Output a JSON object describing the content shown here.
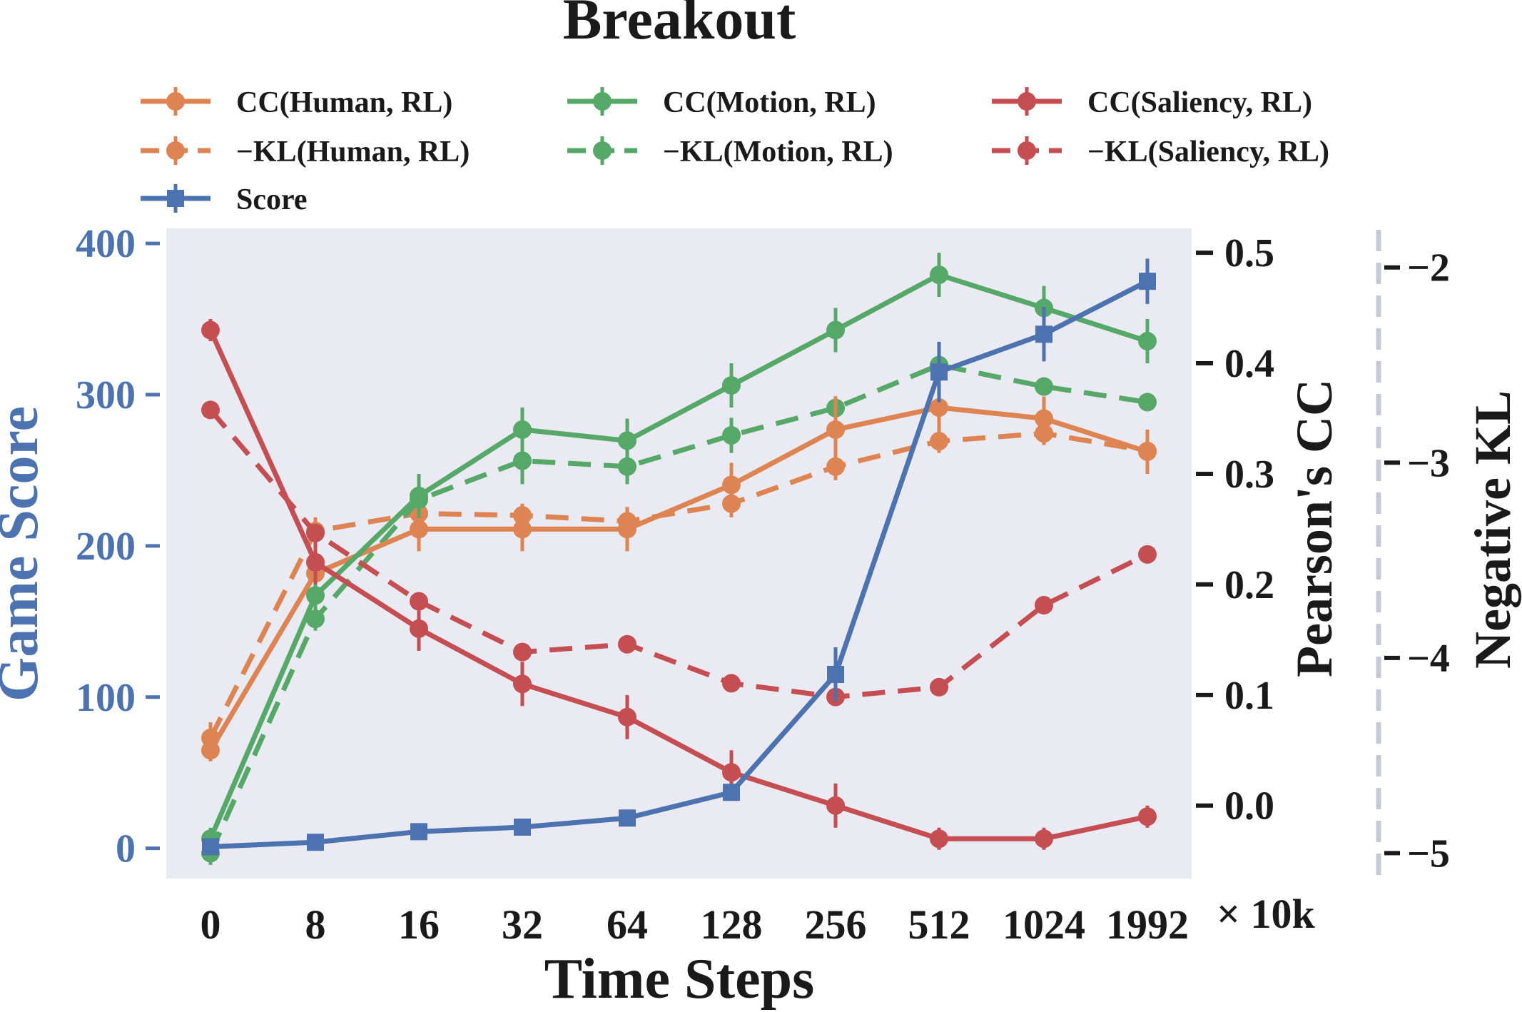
{
  "chart_data": {
    "type": "line",
    "title": "Breakout",
    "xlabel": "Time Steps",
    "x_suffix": "× 10k",
    "categories": [
      "0",
      "8",
      "16",
      "32",
      "64",
      "128",
      "256",
      "512",
      "1024",
      "1992"
    ],
    "axes": {
      "left": {
        "label": "Game Score",
        "ylim": [
          -20,
          410
        ],
        "ticks": [
          0,
          100,
          200,
          300,
          400
        ],
        "tick_labels": [
          "0",
          "100",
          "200",
          "300",
          "400"
        ],
        "color": "#4c72b0"
      },
      "cc": {
        "label": "Pearson's CC",
        "ylim": [
          -0.066,
          0.522
        ],
        "ticks": [
          0.0,
          0.1,
          0.2,
          0.3,
          0.4,
          0.5
        ],
        "tick_labels": [
          "0.0",
          "0.1",
          "0.2",
          "0.3",
          "0.4",
          "0.5"
        ],
        "color": "#1a1a1a"
      },
      "kl": {
        "label": "Negative KL",
        "ylim": [
          -5.13,
          -1.8
        ],
        "ticks": [
          -2,
          -3,
          -4,
          -5
        ],
        "tick_labels": [
          "−2",
          "−3",
          "−4",
          "−5"
        ],
        "color": "#1a1a1a"
      }
    },
    "legend": {
      "placement": "top",
      "entries": [
        {
          "label": "CC(Human, RL)",
          "color": "#dd8452",
          "style": "solid",
          "marker": "circle"
        },
        {
          "label": "CC(Motion, RL)",
          "color": "#55a868",
          "style": "solid",
          "marker": "circle"
        },
        {
          "label": "CC(Saliency, RL)",
          "color": "#c44e52",
          "style": "solid",
          "marker": "circle"
        },
        {
          "label": "−KL(Human, RL)",
          "color": "#dd8452",
          "style": "dashed",
          "marker": "circle"
        },
        {
          "label": "−KL(Motion, RL)",
          "color": "#55a868",
          "style": "dashed",
          "marker": "circle"
        },
        {
          "label": "−KL(Saliency, RL)",
          "color": "#c44e52",
          "style": "dashed",
          "marker": "circle"
        },
        {
          "label": "Score",
          "color": "#4c72b0",
          "style": "solid",
          "marker": "square"
        }
      ]
    },
    "series": [
      {
        "name": "−KL(Human, RL)",
        "axis": "kl",
        "color": "#dd8452",
        "style": "dashed",
        "marker": "circle",
        "values": [
          -4.41,
          -3.35,
          -3.26,
          -3.27,
          -3.3,
          -3.21,
          -3.02,
          -2.89,
          -2.85,
          -2.94
        ],
        "errors": [
          0.08,
          0.07,
          0.05,
          0.06,
          0.05,
          0.07,
          0.07,
          0.06,
          0.06,
          0.05
        ]
      },
      {
        "name": "−KL(Motion, RL)",
        "axis": "kl",
        "color": "#55a868",
        "style": "dashed",
        "marker": "circle",
        "values": [
          -5.0,
          -3.8,
          -3.19,
          -2.99,
          -3.02,
          -2.86,
          -2.72,
          -2.5,
          -2.61,
          -2.69
        ],
        "errors": [
          0.06,
          0.06,
          0.08,
          0.12,
          0.09,
          0.09,
          0.06,
          0.05,
          0.04,
          0.03
        ]
      },
      {
        "name": "−KL(Saliency, RL)",
        "axis": "kl",
        "color": "#c44e52",
        "style": "dashed",
        "marker": "circle",
        "values": [
          -2.73,
          -3.36,
          -3.71,
          -3.97,
          -3.93,
          -4.13,
          -4.2,
          -4.15,
          -3.73,
          -3.47
        ],
        "errors": [
          0.02,
          0.02,
          0.02,
          0.02,
          0.02,
          0.02,
          0.02,
          0.02,
          0.02,
          0.02
        ]
      },
      {
        "name": "CC(Human, RL)",
        "axis": "cc",
        "color": "#dd8452",
        "style": "solid",
        "marker": "circle",
        "values": [
          0.05,
          0.21,
          0.25,
          0.25,
          0.25,
          0.29,
          0.34,
          0.36,
          0.35,
          0.32
        ],
        "errors": [
          0.01,
          0.02,
          0.02,
          0.02,
          0.02,
          0.02,
          0.03,
          0.03,
          0.02,
          0.02
        ]
      },
      {
        "name": "CC(Motion, RL)",
        "axis": "cc",
        "color": "#55a868",
        "style": "solid",
        "marker": "circle",
        "values": [
          -0.03,
          0.19,
          0.28,
          0.34,
          0.33,
          0.38,
          0.43,
          0.48,
          0.45,
          0.42
        ],
        "errors": [
          0.01,
          0.02,
          0.02,
          0.02,
          0.02,
          0.02,
          0.02,
          0.02,
          0.02,
          0.02
        ]
      },
      {
        "name": "CC(Saliency, RL)",
        "axis": "cc",
        "color": "#c44e52",
        "style": "solid",
        "marker": "circle",
        "values": [
          0.43,
          0.22,
          0.16,
          0.11,
          0.08,
          0.03,
          0.0,
          -0.03,
          -0.03,
          -0.01
        ],
        "errors": [
          0.01,
          0.02,
          0.02,
          0.02,
          0.02,
          0.02,
          0.02,
          0.01,
          0.01,
          0.01
        ]
      },
      {
        "name": "Score",
        "axis": "left",
        "color": "#4c72b0",
        "style": "solid",
        "marker": "square",
        "values": [
          1,
          4,
          11,
          14,
          20,
          37,
          115,
          315,
          340,
          375
        ],
        "errors": [
          1,
          1,
          2,
          2,
          2,
          4,
          18,
          20,
          18,
          15
        ]
      }
    ]
  }
}
